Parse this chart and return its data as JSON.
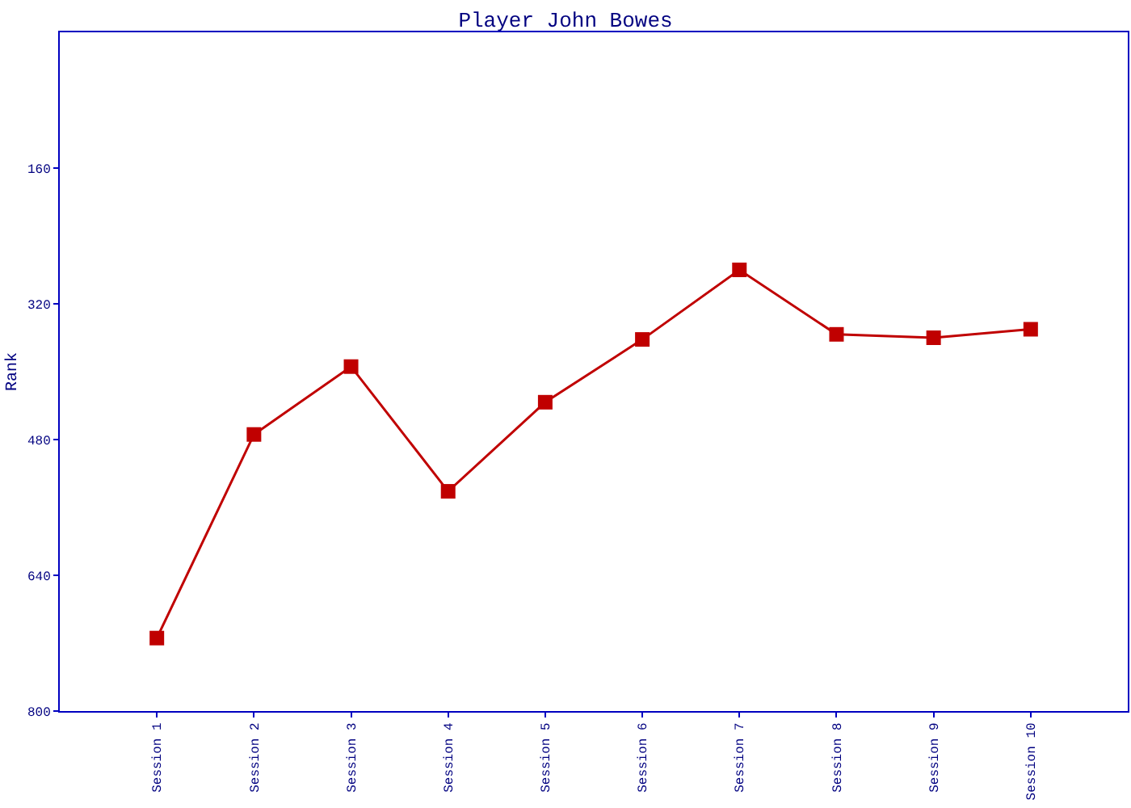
{
  "chart_data": {
    "type": "line",
    "title": "Player John Bowes",
    "ylabel": "Rank",
    "categories": [
      "Session 1",
      "Session 2",
      "Session 3",
      "Session 4",
      "Session 5",
      "Session 6",
      "Session 7",
      "Session 8",
      "Session 9",
      "Session 10"
    ],
    "series": [
      {
        "color": "#c00000",
        "values": [
          714,
          474,
          394,
          541,
          436,
          362,
          280,
          356,
          360,
          350
        ]
      }
    ],
    "ylim": [
      800,
      0
    ],
    "yticks": [
      160,
      320,
      480,
      640,
      800
    ],
    "marker": "square",
    "line_style": "solid"
  }
}
